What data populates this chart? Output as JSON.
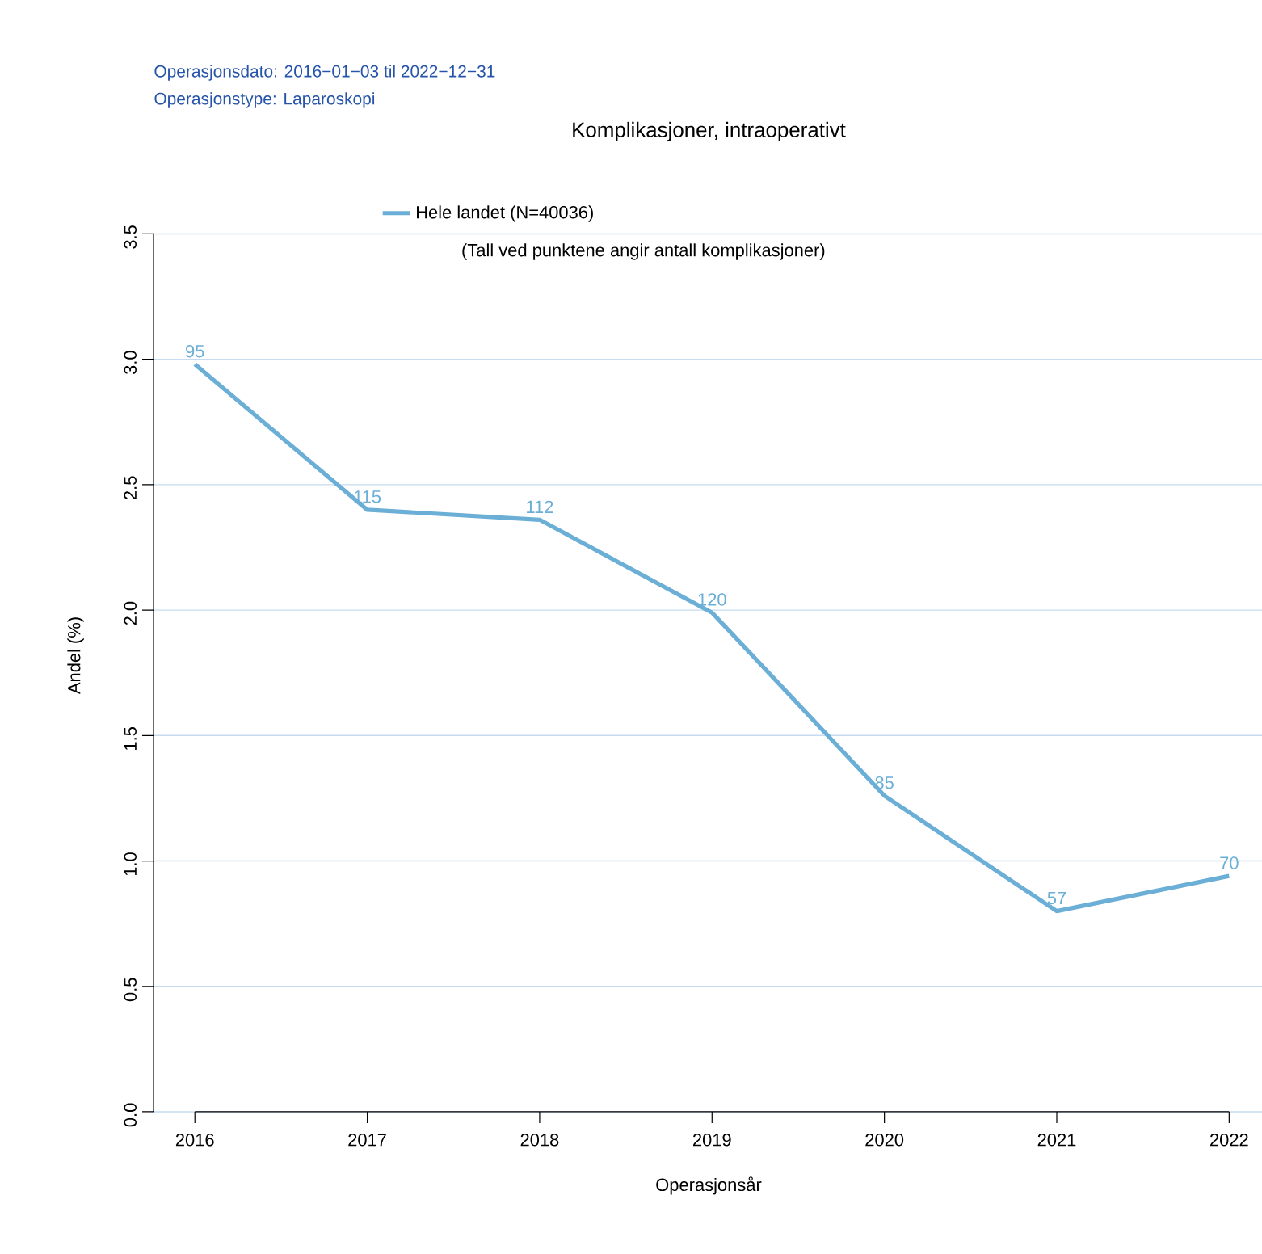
{
  "chart_data": {
    "type": "line",
    "title": "Komplikasjoner, intraoperativt",
    "xlabel": "Operasjonsår",
    "ylabel": "Andel (%)",
    "categories": [
      "2016",
      "2017",
      "2018",
      "2019",
      "2020",
      "2021",
      "2022"
    ],
    "series": [
      {
        "name": "Hele landet (N=40036)",
        "color": "#6baed6",
        "values": [
          2.98,
          2.4,
          2.36,
          1.99,
          1.26,
          0.8,
          0.94
        ]
      }
    ],
    "ylim": [
      0,
      3.5
    ],
    "yticks": [
      {
        "value": 0,
        "label": "0.0"
      },
      {
        "value": 0.5,
        "label": "0.5"
      },
      {
        "value": 1,
        "label": "1.0"
      },
      {
        "value": 1.5,
        "label": "1.5"
      },
      {
        "value": 2,
        "label": "2.0"
      },
      {
        "value": 2.5,
        "label": "2.5"
      },
      {
        "value": 3,
        "label": "3.0"
      },
      {
        "value": 3.5,
        "label": "3.5"
      }
    ],
    "grid": "y",
    "legend": "top",
    "annotations": [
      "Operasjonsdato: 2016−01−03 til 2022−12−31",
      "Operasjonstype: Laparoskopi",
      "(Tall ved punktene angir antall komplikasjoner)",
      {
        "text": "95",
        "x": "2016",
        "y": 2.98
      },
      {
        "text": "115",
        "x": "2017",
        "y": 2.4
      },
      {
        "text": "112",
        "x": "2018",
        "y": 2.36
      },
      {
        "text": "120",
        "x": "2019",
        "y": 1.99
      },
      {
        "text": "85",
        "x": "2020",
        "y": 1.26
      },
      {
        "text": "57",
        "x": "2021",
        "y": 0.8
      },
      {
        "text": "70",
        "x": "2022",
        "y": 0.94
      }
    ]
  }
}
